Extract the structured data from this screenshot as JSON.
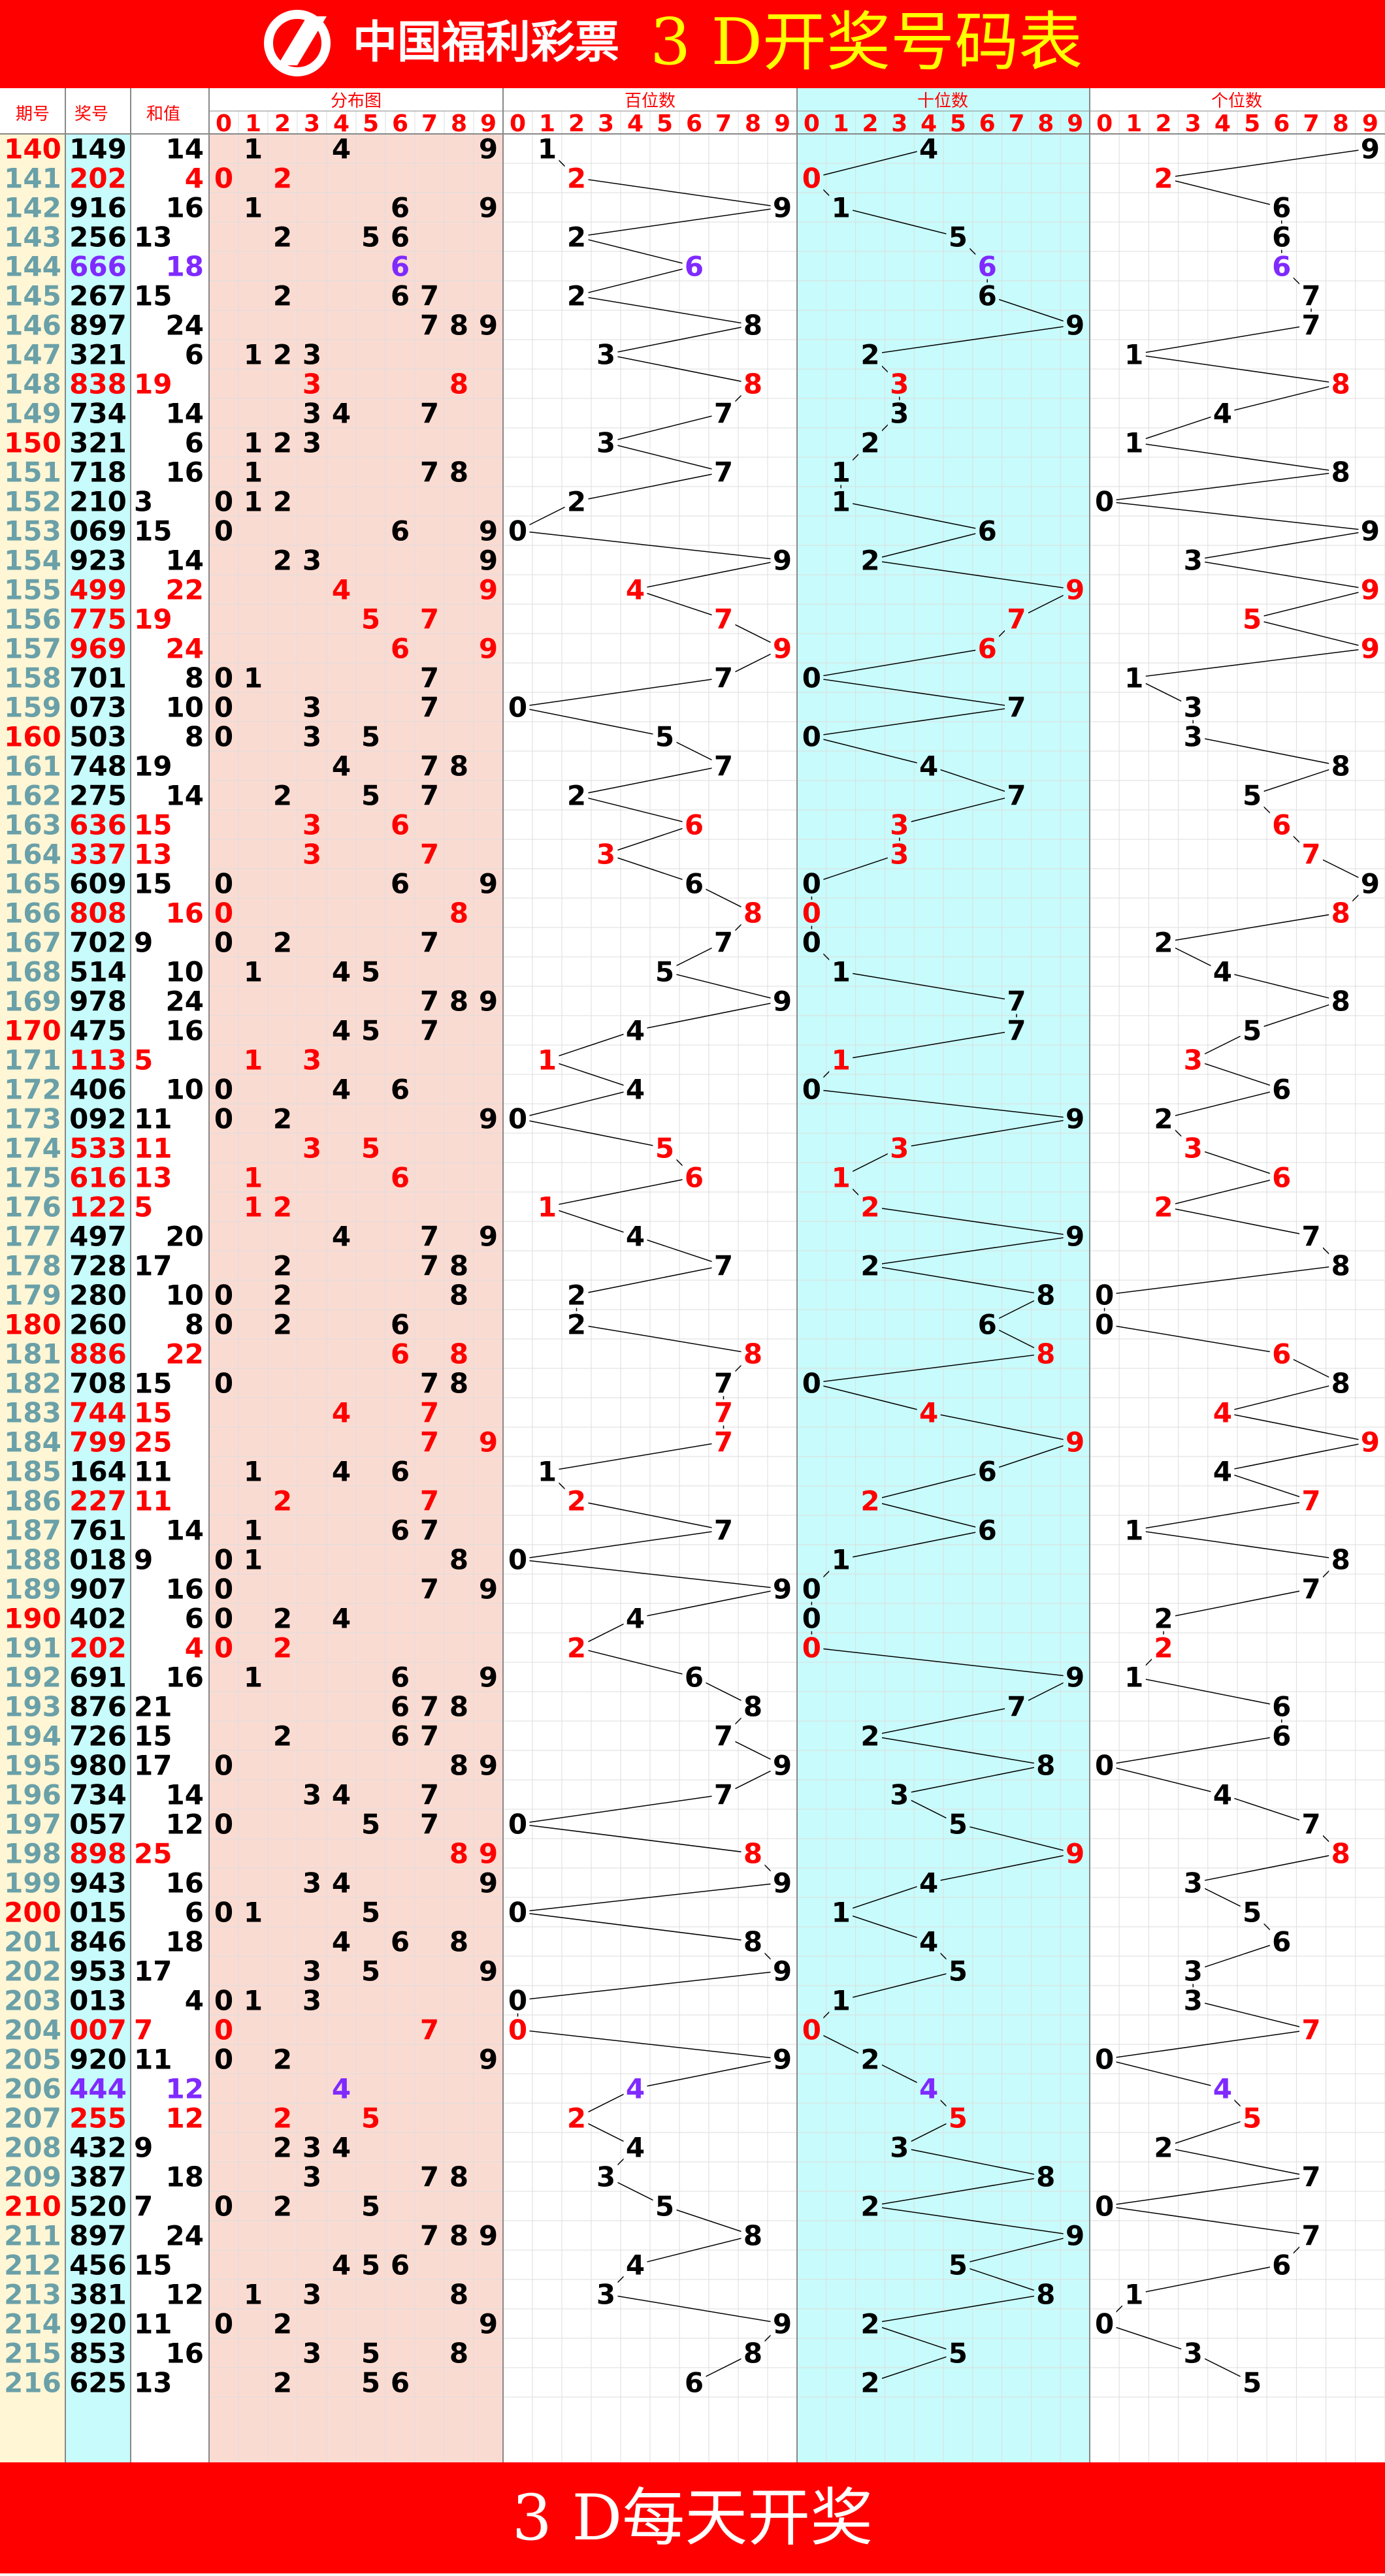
{
  "header": {
    "logo_text": "中国福利彩票",
    "title": "3 D开奖号码表"
  },
  "footer": {
    "text": "3 D每天开奖"
  },
  "columns": {
    "period": "期号",
    "number": "奖号",
    "sum": "和值",
    "distribution": "分布图",
    "hundreds": "百位数",
    "tens": "十位数",
    "ones": "个位数",
    "digits": [
      "0",
      "1",
      "2",
      "3",
      "4",
      "5",
      "6",
      "7",
      "8",
      "9"
    ]
  },
  "colors": {
    "header_red": "#ff0000",
    "title_yellow": "#ffff00",
    "period_bg": "#fff6d5",
    "number_bg": "#c8fbfb",
    "distribution_bg": "#fadbd2",
    "tens_bg": "#c8fbfb",
    "normal": "#000000",
    "repeat_pair": "#ff0000",
    "triple": "#7f2aff",
    "period_mark": "#ff0000",
    "period_text": "#6aa0a8",
    "grid": "#dddddd"
  },
  "chart_data": {
    "type": "table",
    "rows": [
      {
        "period": "140",
        "number": "149",
        "sum": 14
      },
      {
        "period": "141",
        "number": "202",
        "sum": 4
      },
      {
        "period": "142",
        "number": "916",
        "sum": 16
      },
      {
        "period": "143",
        "number": "256",
        "sum": 13
      },
      {
        "period": "144",
        "number": "666",
        "sum": 18
      },
      {
        "period": "145",
        "number": "267",
        "sum": 15
      },
      {
        "period": "146",
        "number": "897",
        "sum": 24
      },
      {
        "period": "147",
        "number": "321",
        "sum": 6
      },
      {
        "period": "148",
        "number": "838",
        "sum": 19
      },
      {
        "period": "149",
        "number": "734",
        "sum": 14
      },
      {
        "period": "150",
        "number": "321",
        "sum": 6
      },
      {
        "period": "151",
        "number": "718",
        "sum": 16
      },
      {
        "period": "152",
        "number": "210",
        "sum": 3
      },
      {
        "period": "153",
        "number": "069",
        "sum": 15
      },
      {
        "period": "154",
        "number": "923",
        "sum": 14
      },
      {
        "period": "155",
        "number": "499",
        "sum": 22
      },
      {
        "period": "156",
        "number": "775",
        "sum": 19
      },
      {
        "period": "157",
        "number": "969",
        "sum": 24
      },
      {
        "period": "158",
        "number": "701",
        "sum": 8
      },
      {
        "period": "159",
        "number": "073",
        "sum": 10
      },
      {
        "period": "160",
        "number": "503",
        "sum": 8
      },
      {
        "period": "161",
        "number": "748",
        "sum": 19
      },
      {
        "period": "162",
        "number": "275",
        "sum": 14
      },
      {
        "period": "163",
        "number": "636",
        "sum": 15
      },
      {
        "period": "164",
        "number": "337",
        "sum": 13
      },
      {
        "period": "165",
        "number": "609",
        "sum": 15
      },
      {
        "period": "166",
        "number": "808",
        "sum": 16
      },
      {
        "period": "167",
        "number": "702",
        "sum": 9
      },
      {
        "period": "168",
        "number": "514",
        "sum": 10
      },
      {
        "period": "169",
        "number": "978",
        "sum": 24
      },
      {
        "period": "170",
        "number": "475",
        "sum": 16
      },
      {
        "period": "171",
        "number": "113",
        "sum": 5
      },
      {
        "period": "172",
        "number": "406",
        "sum": 10
      },
      {
        "period": "173",
        "number": "092",
        "sum": 11
      },
      {
        "period": "174",
        "number": "533",
        "sum": 11
      },
      {
        "period": "175",
        "number": "616",
        "sum": 13
      },
      {
        "period": "176",
        "number": "122",
        "sum": 5
      },
      {
        "period": "177",
        "number": "497",
        "sum": 20
      },
      {
        "period": "178",
        "number": "728",
        "sum": 17
      },
      {
        "period": "179",
        "number": "280",
        "sum": 10
      },
      {
        "period": "180",
        "number": "260",
        "sum": 8
      },
      {
        "period": "181",
        "number": "886",
        "sum": 22
      },
      {
        "period": "182",
        "number": "708",
        "sum": 15
      },
      {
        "period": "183",
        "number": "744",
        "sum": 15
      },
      {
        "period": "184",
        "number": "799",
        "sum": 25
      },
      {
        "period": "185",
        "number": "164",
        "sum": 11
      },
      {
        "period": "186",
        "number": "227",
        "sum": 11
      },
      {
        "period": "187",
        "number": "761",
        "sum": 14
      },
      {
        "period": "188",
        "number": "018",
        "sum": 9
      },
      {
        "period": "189",
        "number": "907",
        "sum": 16
      },
      {
        "period": "190",
        "number": "402",
        "sum": 6
      },
      {
        "period": "191",
        "number": "202",
        "sum": 4
      },
      {
        "period": "192",
        "number": "691",
        "sum": 16
      },
      {
        "period": "193",
        "number": "876",
        "sum": 21
      },
      {
        "period": "194",
        "number": "726",
        "sum": 15
      },
      {
        "period": "195",
        "number": "980",
        "sum": 17
      },
      {
        "period": "196",
        "number": "734",
        "sum": 14
      },
      {
        "period": "197",
        "number": "057",
        "sum": 12
      },
      {
        "period": "198",
        "number": "898",
        "sum": 25
      },
      {
        "period": "199",
        "number": "943",
        "sum": 16
      },
      {
        "period": "200",
        "number": "015",
        "sum": 6
      },
      {
        "period": "201",
        "number": "846",
        "sum": 18
      },
      {
        "period": "202",
        "number": "953",
        "sum": 17
      },
      {
        "period": "203",
        "number": "013",
        "sum": 4
      },
      {
        "period": "204",
        "number": "007",
        "sum": 7
      },
      {
        "period": "205",
        "number": "920",
        "sum": 11
      },
      {
        "period": "206",
        "number": "444",
        "sum": 12
      },
      {
        "period": "207",
        "number": "255",
        "sum": 12
      },
      {
        "period": "208",
        "number": "432",
        "sum": 9
      },
      {
        "period": "209",
        "number": "387",
        "sum": 18
      },
      {
        "period": "210",
        "number": "520",
        "sum": 7
      },
      {
        "period": "211",
        "number": "897",
        "sum": 24
      },
      {
        "period": "212",
        "number": "456",
        "sum": 15
      },
      {
        "period": "213",
        "number": "381",
        "sum": 12
      },
      {
        "period": "214",
        "number": "920",
        "sum": 11
      },
      {
        "period": "215",
        "number": "853",
        "sum": 16
      },
      {
        "period": "216",
        "number": "625",
        "sum": 13
      }
    ]
  }
}
